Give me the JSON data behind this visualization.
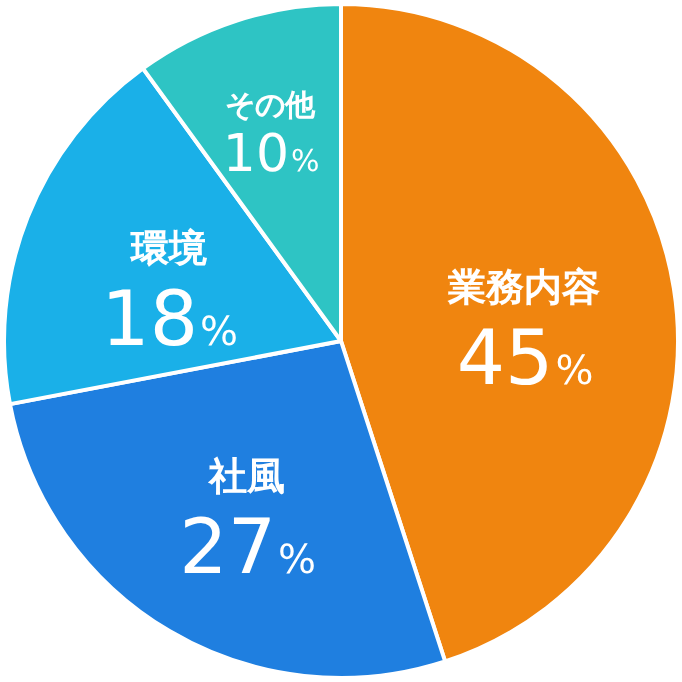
{
  "chart_data": {
    "type": "pie",
    "categories": [
      "業務内容",
      "社風",
      "環境",
      "その他"
    ],
    "values": [
      45,
      27,
      18,
      10
    ],
    "value_labels": [
      "45%",
      "27%",
      "18%",
      "10%"
    ],
    "colors": [
      "#f0850f",
      "#1f7fe0",
      "#1ab0e8",
      "#2ec4c4"
    ],
    "legend": false
  }
}
